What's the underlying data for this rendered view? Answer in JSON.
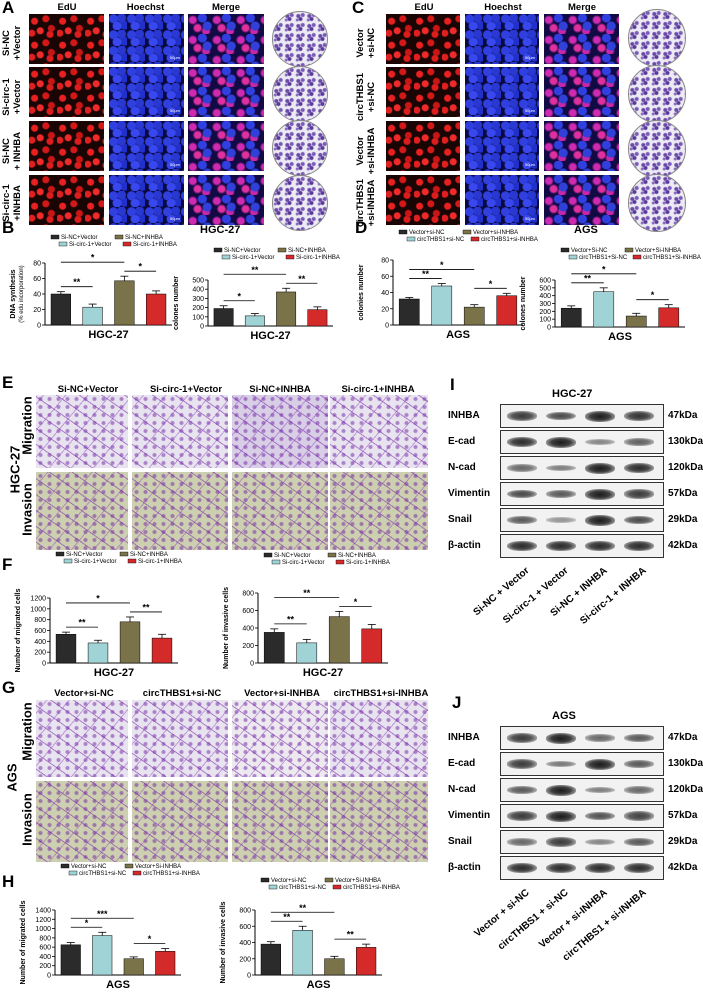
{
  "panel_letters": {
    "A": "A",
    "B": "B",
    "C": "C",
    "D": "D",
    "E": "E",
    "F": "F",
    "G": "G",
    "H": "H",
    "I": "I",
    "J": "J"
  },
  "panelA": {
    "columns": [
      "EdU",
      "Hoechst",
      "Merge"
    ],
    "rows": [
      "Si-NC\n+Vector",
      "Si-circ-1\n+Vector",
      "Si-NC\n+ INHBA",
      "Si-circ-1\n+INHBA"
    ],
    "cell_line": "HGC-27",
    "scale": "50μm"
  },
  "panelC": {
    "columns": [
      "EdU",
      "Hoechst",
      "Merge"
    ],
    "rows": [
      "Vector\n+si-NC",
      "circTHBS1\n+si-NC",
      "Vector\n+si-INHBA",
      "circTHBS1\n+si-INHBA"
    ],
    "cell_line": "AGS",
    "scale": "50μm"
  },
  "panelE": {
    "columns": [
      "Si-NC+Vector",
      "Si-circ-1+Vector",
      "Si-NC+INHBA",
      "Si-circ-1+INHBA"
    ],
    "rows": [
      "Migration",
      "Invasion"
    ],
    "cell_line": "HGC-27"
  },
  "panelG": {
    "columns": [
      "Vector+si-NC",
      "circTHBS1+si-NC",
      "Vector+si-INHBA",
      "circTHBS1+si-INHBA"
    ],
    "rows": [
      "Migration",
      "Invasion"
    ],
    "cell_line": "AGS"
  },
  "colors": {
    "s1": "#2b2b2b",
    "s2": "#9fd3d6",
    "s3": "#7a7248",
    "s4": "#d42a2a"
  },
  "chart_data": [
    {
      "id": "B1",
      "type": "bar",
      "categories": [
        "Si-NC+Vector",
        "Si-circ-1+Vector",
        "Si-NC+INHBA",
        "Si-circ-1+INHBA"
      ],
      "values": [
        40,
        23,
        57,
        40
      ],
      "errors": [
        3,
        4,
        6,
        4
      ],
      "ylim": [
        0,
        80
      ],
      "yticks": [
        0,
        20,
        40,
        60,
        80
      ],
      "ylabel": "DNA synthesis",
      "ylabel2": "(% edu incorporation)",
      "xlabel": "HGC-27",
      "legend": [
        "Si-NC+Vector",
        "Si-NC+INHBA",
        "Si-circ-1+Vector",
        "Si-circ-1+INHBA"
      ],
      "sig": [
        {
          "a": 0,
          "b": 1,
          "t": "**",
          "lvl": 0
        },
        {
          "a": 0,
          "b": 2,
          "t": "*",
          "lvl": 1
        },
        {
          "a": 2,
          "b": 3,
          "t": "*",
          "lvl": 0
        }
      ]
    },
    {
      "id": "B2",
      "type": "bar",
      "categories": [
        "Si-NC+Vector",
        "Si-circ-1+Vector",
        "Si-NC+INHBA",
        "Si-circ-1+INHBA"
      ],
      "values": [
        190,
        110,
        370,
        178
      ],
      "errors": [
        30,
        25,
        40,
        30
      ],
      "ylim": [
        0,
        500
      ],
      "yticks": [
        0,
        100,
        200,
        300,
        400,
        500
      ],
      "ylabel": "colones number",
      "xlabel": "HGC-27",
      "legend": [
        "Si-NC+Vector",
        "Si-NC+INHBA",
        "Si-circ-1+Vector",
        "Si-circ-1+INHBA"
      ],
      "sig": [
        {
          "a": 0,
          "b": 1,
          "t": "*",
          "lvl": 0
        },
        {
          "a": 0,
          "b": 2,
          "t": "**",
          "lvl": 1
        },
        {
          "a": 2,
          "b": 3,
          "t": "**",
          "lvl": 0
        }
      ]
    },
    {
      "id": "D1",
      "type": "bar",
      "categories": [
        "Vector+si-NC",
        "circTHBS1+si-NC",
        "Vector+si-INHBA",
        "circTHBS1+si-INHBA"
      ],
      "values": [
        32,
        48,
        22,
        36
      ],
      "errors": [
        2,
        3,
        3,
        3
      ],
      "ylim": [
        0,
        80
      ],
      "yticks": [
        0,
        20,
        40,
        60,
        80
      ],
      "ylabel": "colonies number",
      "xlabel": "AGS",
      "legend": [
        "Vector+si-NC",
        "Vector+si-INHBA",
        "circTHBS1+si-NC",
        "circTHBS1+si-INHBA"
      ],
      "sig": [
        {
          "a": 0,
          "b": 1,
          "t": "**",
          "lvl": 0
        },
        {
          "a": 0,
          "b": 2,
          "t": "*",
          "lvl": 1
        },
        {
          "a": 2,
          "b": 3,
          "t": "*",
          "lvl": 0
        }
      ]
    },
    {
      "id": "D2",
      "type": "bar",
      "categories": [
        "Vector+Si-NC",
        "circTHBS1+Si-NC",
        "Vector+Si-INHBA",
        "circTHBS1+Si-INHBA"
      ],
      "values": [
        240,
        450,
        140,
        245
      ],
      "errors": [
        30,
        50,
        35,
        40
      ],
      "ylim": [
        0,
        600
      ],
      "yticks": [
        0,
        100,
        200,
        300,
        400,
        500,
        600
      ],
      "ylabel": "colones number",
      "xlabel": "AGS",
      "legend": [
        "Vector+Si-NC",
        "Vector+Si-INHBA",
        "circTHBS1+Si-NC",
        "circTHBS1+Si-INHBA"
      ],
      "sig": [
        {
          "a": 0,
          "b": 1,
          "t": "**",
          "lvl": 0
        },
        {
          "a": 0,
          "b": 2,
          "t": "*",
          "lvl": 1
        },
        {
          "a": 2,
          "b": 3,
          "t": "*",
          "lvl": 0
        }
      ]
    },
    {
      "id": "F1",
      "type": "bar",
      "categories": [
        "Si-NC+Vector",
        "Si-circ-1+Vector",
        "Si-NC+INHBA",
        "Si-circ-1+INHBA"
      ],
      "values": [
        530,
        370,
        760,
        460
      ],
      "errors": [
        40,
        50,
        90,
        70
      ],
      "ylim": [
        0,
        1200
      ],
      "yticks": [
        0,
        200,
        400,
        600,
        800,
        1000,
        1200
      ],
      "ylabel": "Number of migrated cells",
      "xlabel": "HGC-27",
      "legend": [
        "Si-NC+Vector",
        "Si-NC+INHBA",
        "Si-circ-1+Vector",
        "Si-circ-1+INHBA"
      ],
      "sig": [
        {
          "a": 0,
          "b": 1,
          "t": "**",
          "lvl": 0
        },
        {
          "a": 0,
          "b": 2,
          "t": "*",
          "lvl": 1
        },
        {
          "a": 2,
          "b": 3,
          "t": "**",
          "lvl": 0
        }
      ]
    },
    {
      "id": "F2",
      "type": "bar",
      "categories": [
        "Si-NC+Vector",
        "Si-circ-1+Vector",
        "Si-NC+INHBA",
        "Si-circ-1+INHBA"
      ],
      "values": [
        350,
        230,
        530,
        390
      ],
      "errors": [
        40,
        40,
        60,
        50
      ],
      "ylim": [
        0,
        800
      ],
      "yticks": [
        0,
        200,
        400,
        600,
        800
      ],
      "ylabel": "Number of invasive cells",
      "xlabel": "HGC-27",
      "legend": [
        "Si-NC+Vector",
        "Si-NC+INHBA",
        "Si-circ-1+Vector",
        "Si-circ-1+INHBA"
      ],
      "sig": [
        {
          "a": 0,
          "b": 1,
          "t": "**",
          "lvl": 0
        },
        {
          "a": 0,
          "b": 2,
          "t": "**",
          "lvl": 1
        },
        {
          "a": 2,
          "b": 3,
          "t": "*",
          "lvl": 0
        }
      ]
    },
    {
      "id": "H1",
      "type": "bar",
      "categories": [
        "Vector+si-NC",
        "circTHBS1+si-NC",
        "Vector+si-INHBA",
        "circTHBS1+si-INHBA"
      ],
      "values": [
        650,
        850,
        350,
        510
      ],
      "errors": [
        50,
        70,
        40,
        60
      ],
      "ylim": [
        0,
        1400
      ],
      "yticks": [
        0,
        200,
        400,
        600,
        800,
        1000,
        1200,
        1400
      ],
      "ylabel": "Number of migrated cells",
      "xlabel": "AGS",
      "legend": [
        "Vector+si-NC",
        "Vector+Si-INHBA",
        "circTHBS1+si-NC",
        "circTHBS1+si-INHBA"
      ],
      "sig": [
        {
          "a": 0,
          "b": 1,
          "t": "*",
          "lvl": 0
        },
        {
          "a": 0,
          "b": 2,
          "t": "***",
          "lvl": 1
        },
        {
          "a": 2,
          "b": 3,
          "t": "*",
          "lvl": 0
        }
      ]
    },
    {
      "id": "H2",
      "type": "bar",
      "categories": [
        "Vector+si-NC",
        "circTHBS1+si-NC",
        "Vector+si-INHBA",
        "circTHBS1+si-INHBA"
      ],
      "values": [
        380,
        550,
        200,
        340
      ],
      "errors": [
        30,
        50,
        30,
        40
      ],
      "ylim": [
        0,
        800
      ],
      "yticks": [
        0,
        200,
        400,
        600,
        800
      ],
      "ylabel": "Number of invasive cells",
      "xlabel": "AGS",
      "legend": [
        "Vector+si-NC",
        "Vector+Si-INHBA",
        "circTHBS1+si-NC",
        "circTHBS1+si-INHBA"
      ],
      "sig": [
        {
          "a": 0,
          "b": 1,
          "t": "**",
          "lvl": 0
        },
        {
          "a": 0,
          "b": 2,
          "t": "**",
          "lvl": 1
        },
        {
          "a": 2,
          "b": 3,
          "t": "**",
          "lvl": 0
        }
      ]
    }
  ],
  "blotI": {
    "title": "HGC-27",
    "proteins": [
      "INHBA",
      "E-cad",
      "N-cad",
      "Vimentin",
      "Snail",
      "β-actin"
    ],
    "kda": [
      "47kDa",
      "130kDa",
      "120kDa",
      "57kDa",
      "29kDa",
      "42kDa"
    ],
    "lanes": [
      "Si-NC + Vector",
      "Si-circ-1 + Vector",
      "Si-NC + INHBA",
      "Si-circ-1 + INHBA"
    ],
    "intensity": [
      [
        0.8,
        0.7,
        1,
        0.85
      ],
      [
        0.9,
        1,
        0.3,
        0.55
      ],
      [
        0.5,
        0.35,
        1,
        0.9
      ],
      [
        0.7,
        0.6,
        1,
        0.8
      ],
      [
        0.6,
        0.2,
        1,
        0.7
      ],
      [
        0.9,
        0.9,
        0.9,
        0.9
      ]
    ]
  },
  "blotJ": {
    "title": "AGS",
    "proteins": [
      "INHBA",
      "E-cad",
      "N-cad",
      "Vimentin",
      "Snail",
      "β-actin"
    ],
    "kda": [
      "47kDa",
      "130kDa",
      "120kDa",
      "57kDa",
      "29kDa",
      "42kDa"
    ],
    "lanes": [
      "Vector + si-NC",
      "circTHBS1 + si-NC",
      "Vector + si-INHBA",
      "circTHBS1 + si-INHBA"
    ],
    "intensity": [
      [
        0.8,
        1,
        0.5,
        0.6
      ],
      [
        0.8,
        0.4,
        1,
        0.6
      ],
      [
        0.6,
        1,
        0.35,
        0.5
      ],
      [
        0.8,
        1,
        0.65,
        0.75
      ],
      [
        0.5,
        0.8,
        0.3,
        0.6
      ],
      [
        0.9,
        0.9,
        0.9,
        0.9
      ]
    ]
  }
}
